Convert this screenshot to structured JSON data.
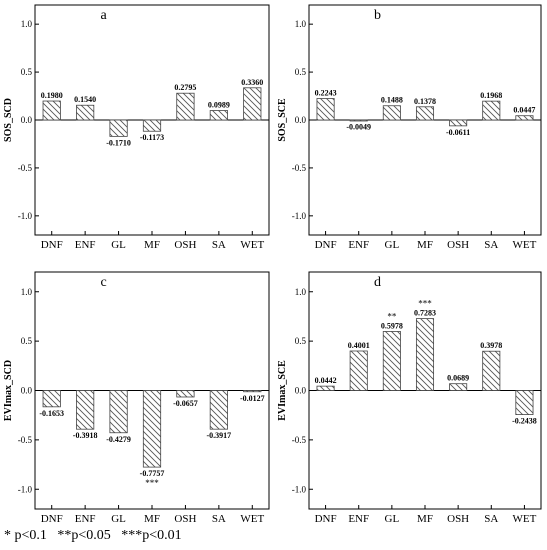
{
  "chart_data": [
    {
      "type": "bar",
      "panel_letter": "a",
      "ylabel": "SOS_SCD",
      "categories": [
        "DNF",
        "ENF",
        "GL",
        "MF",
        "OSH",
        "SA",
        "WET"
      ],
      "values": [
        0.198,
        0.154,
        -0.171,
        -0.1173,
        0.2795,
        0.0989,
        0.336
      ],
      "value_labels": [
        "0.1980",
        "0.1540",
        "-0.1710",
        "-0.1173",
        "0.2795",
        "0.0989",
        "0.3360"
      ],
      "significance": [
        "",
        "",
        "",
        "",
        "",
        "",
        ""
      ],
      "ylim": [
        -1.2,
        1.2
      ],
      "yticks": [
        -1.0,
        -0.5,
        0.0,
        0.5,
        1.0
      ],
      "ytick_labels": [
        "-1.0",
        "-0.5",
        "0.0",
        "0.5",
        "1.0"
      ],
      "grid": false
    },
    {
      "type": "bar",
      "panel_letter": "b",
      "ylabel": "SOS_SCE",
      "categories": [
        "DNF",
        "ENF",
        "GL",
        "MF",
        "OSH",
        "SA",
        "WET"
      ],
      "values": [
        0.2243,
        -0.0049,
        0.1488,
        0.1378,
        -0.0611,
        0.1968,
        0.0447
      ],
      "value_labels": [
        "0.2243",
        "-0.0049",
        "0.1488",
        "0.1378",
        "-0.0611",
        "0.1968",
        "0.0447"
      ],
      "significance": [
        "",
        "",
        "",
        "",
        "",
        "",
        ""
      ],
      "ylim": [
        -1.2,
        1.2
      ],
      "yticks": [
        -1.0,
        -0.5,
        0.0,
        0.5,
        1.0
      ],
      "ytick_labels": [
        "-1.0",
        "-0.5",
        "0.0",
        "0.5",
        "1.0"
      ],
      "grid": false
    },
    {
      "type": "bar",
      "panel_letter": "c",
      "ylabel": "EVImax_SCD",
      "categories": [
        "DNF",
        "ENF",
        "GL",
        "MF",
        "OSH",
        "SA",
        "WET"
      ],
      "values": [
        -0.1653,
        -0.3918,
        -0.4279,
        -0.7757,
        -0.0657,
        -0.3917,
        -0.0127
      ],
      "value_labels": [
        "-0.1653",
        "-0.3918",
        "-0.4279",
        "-0.7757",
        "-0.0657",
        "-0.3917",
        "-0.0127"
      ],
      "significance": [
        "",
        "",
        "",
        "***",
        "",
        "",
        ""
      ],
      "ylim": [
        -1.2,
        1.2
      ],
      "yticks": [
        -1.0,
        -0.5,
        0.0,
        0.5,
        1.0
      ],
      "ytick_labels": [
        "-1.0",
        "-0.5",
        "0.0",
        "0.5",
        "1.0"
      ],
      "grid": false
    },
    {
      "type": "bar",
      "panel_letter": "d",
      "ylabel": "EVImax_SCE",
      "categories": [
        "DNF",
        "ENF",
        "GL",
        "MF",
        "OSH",
        "SA",
        "WET"
      ],
      "values": [
        0.0442,
        0.4001,
        0.5978,
        0.7283,
        0.0689,
        0.3978,
        -0.2438
      ],
      "value_labels": [
        "0.0442",
        "0.4001",
        "0.5978",
        "0.7283",
        "0.0689",
        "0.3978",
        "-0.2438"
      ],
      "significance": [
        "",
        "",
        "**",
        "***",
        "",
        "",
        ""
      ],
      "ylim": [
        -1.2,
        1.2
      ],
      "yticks": [
        -1.0,
        -0.5,
        0.0,
        0.5,
        1.0
      ],
      "ytick_labels": [
        "-1.0",
        "-0.5",
        "0.0",
        "0.5",
        "1.0"
      ],
      "grid": false
    }
  ],
  "significance_legend": "* p<0.1   **p<0.05   ***p<0.01",
  "bar_fill": "#ffffff",
  "bar_hatch_color": "#555555",
  "axis_color": "#000000"
}
